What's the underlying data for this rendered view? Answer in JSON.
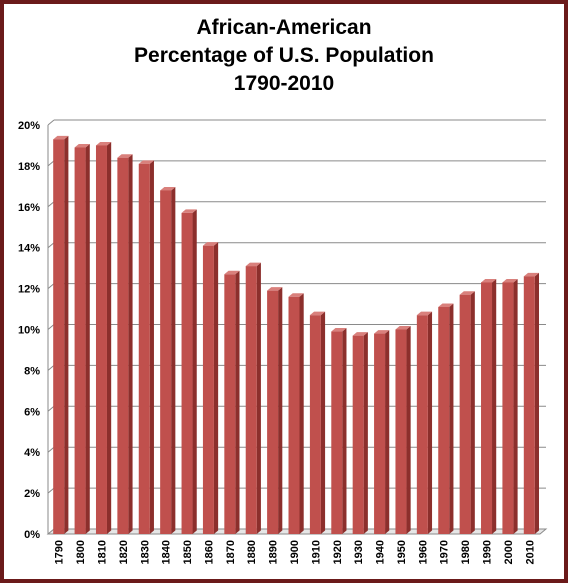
{
  "title_lines": [
    "African-American",
    "Percentage of U.S. Population",
    "1790-2010"
  ],
  "colors": {
    "frame": "#6b1a1a",
    "bar_front": "#c0504d",
    "bar_side": "#8c2f2c",
    "bar_top": "#d9807c",
    "grid": "#8a8a8a"
  },
  "chart_data": {
    "type": "bar",
    "title": "African-American Percentage of U.S. Population 1790-2010",
    "xlabel": "",
    "ylabel": "",
    "categories": [
      "1790",
      "1800",
      "1810",
      "1820",
      "1830",
      "1840",
      "1850",
      "1860",
      "1870",
      "1880",
      "1890",
      "1900",
      "1910",
      "1920",
      "1930",
      "1940",
      "1950",
      "1960",
      "1970",
      "1980",
      "1990",
      "2000",
      "2010"
    ],
    "values": [
      19.3,
      18.9,
      19.0,
      18.4,
      18.1,
      16.8,
      15.7,
      14.1,
      12.7,
      13.1,
      11.9,
      11.6,
      10.7,
      9.9,
      9.7,
      9.8,
      10.0,
      10.7,
      11.1,
      11.7,
      12.3,
      12.3,
      12.6
    ],
    "ylim": [
      0,
      20
    ],
    "yticks": [
      "0%",
      "2%",
      "4%",
      "6%",
      "8%",
      "10%",
      "12%",
      "14%",
      "16%",
      "18%",
      "20%"
    ],
    "grid": true,
    "legend": "none"
  }
}
